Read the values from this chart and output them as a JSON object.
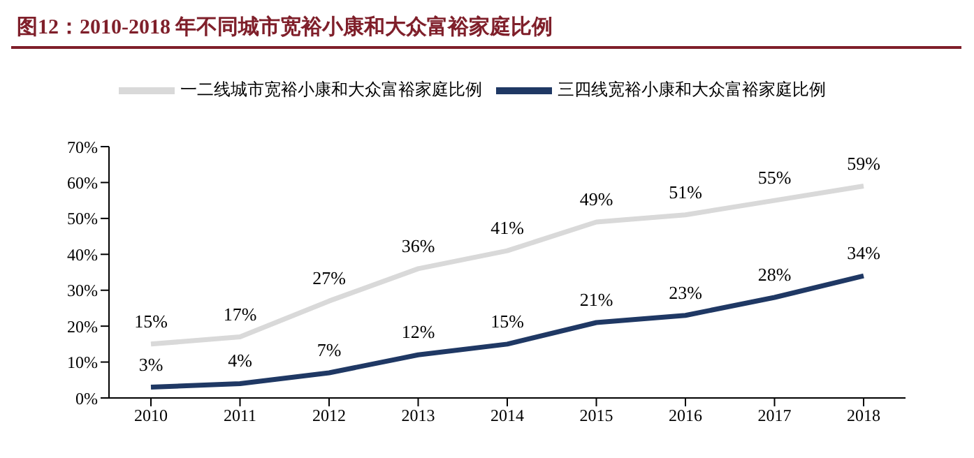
{
  "chart_data": {
    "type": "line",
    "title": "图12：2010-2018 年不同城市宽裕小康和大众富裕家庭比例",
    "categories": [
      "2010",
      "2011",
      "2012",
      "2013",
      "2014",
      "2015",
      "2016",
      "2017",
      "2018"
    ],
    "series": [
      {
        "name": "一二线城市宽裕小康和大众富裕家庭比例",
        "color": "#d9d9d9",
        "values": [
          15,
          17,
          27,
          36,
          41,
          49,
          51,
          55,
          59
        ],
        "value_labels": [
          "15%",
          "17%",
          "27%",
          "36%",
          "41%",
          "49%",
          "51%",
          "55%",
          "59%"
        ]
      },
      {
        "name": "三四线宽裕小康和大众富裕家庭比例",
        "color": "#1f3864",
        "values": [
          3,
          4,
          7,
          12,
          15,
          21,
          23,
          28,
          34
        ],
        "value_labels": [
          "3%",
          "4%",
          "7%",
          "12%",
          "15%",
          "21%",
          "23%",
          "28%",
          "34%"
        ]
      }
    ],
    "ylim": [
      0,
      70
    ],
    "yticks": [
      {
        "value": 0,
        "label": "0%"
      },
      {
        "value": 10,
        "label": "10%"
      },
      {
        "value": 20,
        "label": "20%"
      },
      {
        "value": 30,
        "label": "30%"
      },
      {
        "value": 40,
        "label": "40%"
      },
      {
        "value": 50,
        "label": "50%"
      },
      {
        "value": 60,
        "label": "60%"
      },
      {
        "value": 70,
        "label": "70%"
      }
    ],
    "legend": "top",
    "marker": "none",
    "line_style": "solid",
    "grid": false
  }
}
